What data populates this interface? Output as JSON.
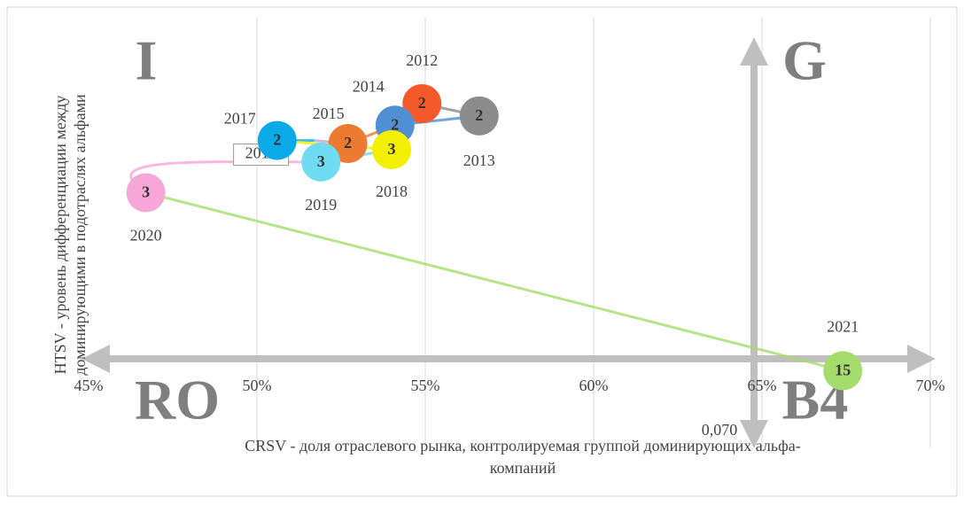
{
  "chart_data": {
    "type": "bubble",
    "xlabel": [
      "CRSV - доля отраслевого рынка, контролируемая группой доминирующих альфа-",
      "компаний"
    ],
    "ylabel": [
      "HTSV - уровень дифференциации между",
      "доминирующими в подотраслях альфами"
    ],
    "xlim": [
      45,
      70
    ],
    "xticks": [
      {
        "value": 45,
        "label": "45%"
      },
      {
        "value": 50,
        "label": "50%"
      },
      {
        "value": 55,
        "label": "55%"
      },
      {
        "value": 60,
        "label": "60%"
      },
      {
        "value": 65,
        "label": "65%"
      },
      {
        "value": 70,
        "label": "70%"
      }
    ],
    "ylim": [
      0.06,
      0.2
    ],
    "grid": true,
    "annotations": [
      "I",
      "G",
      "RO",
      "B4",
      "0,070"
    ],
    "points": [
      {
        "name": "2012",
        "x": 54.9,
        "y": 0.172,
        "size": 2,
        "color": "#f4592b"
      },
      {
        "name": "2013",
        "x": 56.6,
        "y": 0.168,
        "size": 2,
        "color": "#8c8c8c"
      },
      {
        "name": "2014",
        "x": 54.1,
        "y": 0.165,
        "size": 2,
        "color": "#4f8fd2"
      },
      {
        "name": "2015",
        "x": 52.7,
        "y": 0.159,
        "size": 2,
        "color": "#ec7a30"
      },
      {
        "name": "2016",
        "x": 51.7,
        "y": 0.16,
        "size": null,
        "color": "#c9a0c9"
      },
      {
        "name": "2017",
        "x": 50.6,
        "y": 0.16,
        "size": 2,
        "color": "#0aaae8"
      },
      {
        "name": "2018",
        "x": 54.0,
        "y": 0.157,
        "size": 3,
        "color": "#f2ef00"
      },
      {
        "name": "2019",
        "x": 51.9,
        "y": 0.153,
        "size": 3,
        "color": "#6fdcf2"
      },
      {
        "name": "2020",
        "x": 46.7,
        "y": 0.143,
        "size": 3,
        "color": "#f7a6d8"
      },
      {
        "name": "2021",
        "x": 67.4,
        "y": 0.085,
        "size": 15,
        "color": "#a4dd6c"
      }
    ]
  }
}
